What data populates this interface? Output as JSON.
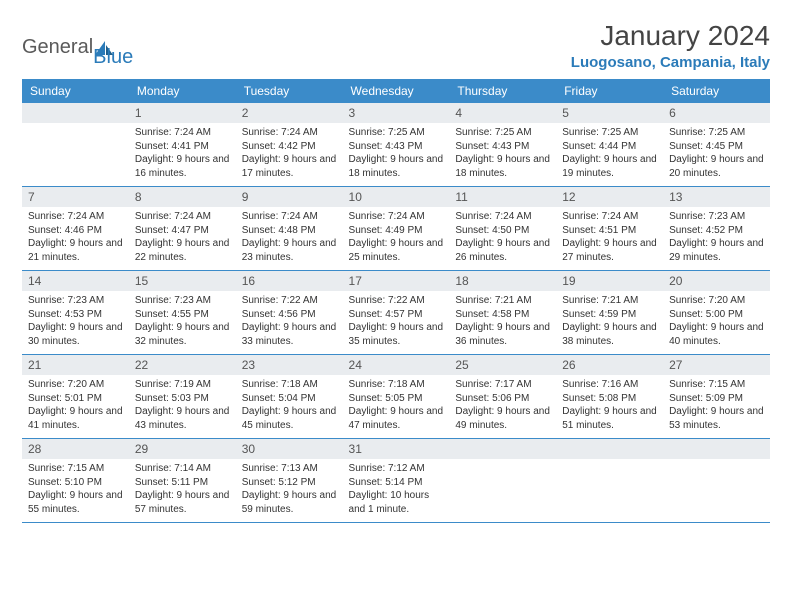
{
  "brand": {
    "name1": "General",
    "name2": "Blue"
  },
  "title": "January 2024",
  "location": "Luogosano, Campania, Italy",
  "colors": {
    "header_bg": "#3b8bc9",
    "header_text": "#ffffff",
    "daynum_bg": "#e9ecef",
    "accent": "#2b7bb9",
    "row_border": "#3b8bc9",
    "text": "#333333"
  },
  "day_names": [
    "Sunday",
    "Monday",
    "Tuesday",
    "Wednesday",
    "Thursday",
    "Friday",
    "Saturday"
  ],
  "weeks": [
    [
      {
        "n": "",
        "sr": "",
        "ss": "",
        "dl": ""
      },
      {
        "n": "1",
        "sr": "Sunrise: 7:24 AM",
        "ss": "Sunset: 4:41 PM",
        "dl": "Daylight: 9 hours and 16 minutes."
      },
      {
        "n": "2",
        "sr": "Sunrise: 7:24 AM",
        "ss": "Sunset: 4:42 PM",
        "dl": "Daylight: 9 hours and 17 minutes."
      },
      {
        "n": "3",
        "sr": "Sunrise: 7:25 AM",
        "ss": "Sunset: 4:43 PM",
        "dl": "Daylight: 9 hours and 18 minutes."
      },
      {
        "n": "4",
        "sr": "Sunrise: 7:25 AM",
        "ss": "Sunset: 4:43 PM",
        "dl": "Daylight: 9 hours and 18 minutes."
      },
      {
        "n": "5",
        "sr": "Sunrise: 7:25 AM",
        "ss": "Sunset: 4:44 PM",
        "dl": "Daylight: 9 hours and 19 minutes."
      },
      {
        "n": "6",
        "sr": "Sunrise: 7:25 AM",
        "ss": "Sunset: 4:45 PM",
        "dl": "Daylight: 9 hours and 20 minutes."
      }
    ],
    [
      {
        "n": "7",
        "sr": "Sunrise: 7:24 AM",
        "ss": "Sunset: 4:46 PM",
        "dl": "Daylight: 9 hours and 21 minutes."
      },
      {
        "n": "8",
        "sr": "Sunrise: 7:24 AM",
        "ss": "Sunset: 4:47 PM",
        "dl": "Daylight: 9 hours and 22 minutes."
      },
      {
        "n": "9",
        "sr": "Sunrise: 7:24 AM",
        "ss": "Sunset: 4:48 PM",
        "dl": "Daylight: 9 hours and 23 minutes."
      },
      {
        "n": "10",
        "sr": "Sunrise: 7:24 AM",
        "ss": "Sunset: 4:49 PM",
        "dl": "Daylight: 9 hours and 25 minutes."
      },
      {
        "n": "11",
        "sr": "Sunrise: 7:24 AM",
        "ss": "Sunset: 4:50 PM",
        "dl": "Daylight: 9 hours and 26 minutes."
      },
      {
        "n": "12",
        "sr": "Sunrise: 7:24 AM",
        "ss": "Sunset: 4:51 PM",
        "dl": "Daylight: 9 hours and 27 minutes."
      },
      {
        "n": "13",
        "sr": "Sunrise: 7:23 AM",
        "ss": "Sunset: 4:52 PM",
        "dl": "Daylight: 9 hours and 29 minutes."
      }
    ],
    [
      {
        "n": "14",
        "sr": "Sunrise: 7:23 AM",
        "ss": "Sunset: 4:53 PM",
        "dl": "Daylight: 9 hours and 30 minutes."
      },
      {
        "n": "15",
        "sr": "Sunrise: 7:23 AM",
        "ss": "Sunset: 4:55 PM",
        "dl": "Daylight: 9 hours and 32 minutes."
      },
      {
        "n": "16",
        "sr": "Sunrise: 7:22 AM",
        "ss": "Sunset: 4:56 PM",
        "dl": "Daylight: 9 hours and 33 minutes."
      },
      {
        "n": "17",
        "sr": "Sunrise: 7:22 AM",
        "ss": "Sunset: 4:57 PM",
        "dl": "Daylight: 9 hours and 35 minutes."
      },
      {
        "n": "18",
        "sr": "Sunrise: 7:21 AM",
        "ss": "Sunset: 4:58 PM",
        "dl": "Daylight: 9 hours and 36 minutes."
      },
      {
        "n": "19",
        "sr": "Sunrise: 7:21 AM",
        "ss": "Sunset: 4:59 PM",
        "dl": "Daylight: 9 hours and 38 minutes."
      },
      {
        "n": "20",
        "sr": "Sunrise: 7:20 AM",
        "ss": "Sunset: 5:00 PM",
        "dl": "Daylight: 9 hours and 40 minutes."
      }
    ],
    [
      {
        "n": "21",
        "sr": "Sunrise: 7:20 AM",
        "ss": "Sunset: 5:01 PM",
        "dl": "Daylight: 9 hours and 41 minutes."
      },
      {
        "n": "22",
        "sr": "Sunrise: 7:19 AM",
        "ss": "Sunset: 5:03 PM",
        "dl": "Daylight: 9 hours and 43 minutes."
      },
      {
        "n": "23",
        "sr": "Sunrise: 7:18 AM",
        "ss": "Sunset: 5:04 PM",
        "dl": "Daylight: 9 hours and 45 minutes."
      },
      {
        "n": "24",
        "sr": "Sunrise: 7:18 AM",
        "ss": "Sunset: 5:05 PM",
        "dl": "Daylight: 9 hours and 47 minutes."
      },
      {
        "n": "25",
        "sr": "Sunrise: 7:17 AM",
        "ss": "Sunset: 5:06 PM",
        "dl": "Daylight: 9 hours and 49 minutes."
      },
      {
        "n": "26",
        "sr": "Sunrise: 7:16 AM",
        "ss": "Sunset: 5:08 PM",
        "dl": "Daylight: 9 hours and 51 minutes."
      },
      {
        "n": "27",
        "sr": "Sunrise: 7:15 AM",
        "ss": "Sunset: 5:09 PM",
        "dl": "Daylight: 9 hours and 53 minutes."
      }
    ],
    [
      {
        "n": "28",
        "sr": "Sunrise: 7:15 AM",
        "ss": "Sunset: 5:10 PM",
        "dl": "Daylight: 9 hours and 55 minutes."
      },
      {
        "n": "29",
        "sr": "Sunrise: 7:14 AM",
        "ss": "Sunset: 5:11 PM",
        "dl": "Daylight: 9 hours and 57 minutes."
      },
      {
        "n": "30",
        "sr": "Sunrise: 7:13 AM",
        "ss": "Sunset: 5:12 PM",
        "dl": "Daylight: 9 hours and 59 minutes."
      },
      {
        "n": "31",
        "sr": "Sunrise: 7:12 AM",
        "ss": "Sunset: 5:14 PM",
        "dl": "Daylight: 10 hours and 1 minute."
      },
      {
        "n": "",
        "sr": "",
        "ss": "",
        "dl": ""
      },
      {
        "n": "",
        "sr": "",
        "ss": "",
        "dl": ""
      },
      {
        "n": "",
        "sr": "",
        "ss": "",
        "dl": ""
      }
    ]
  ]
}
